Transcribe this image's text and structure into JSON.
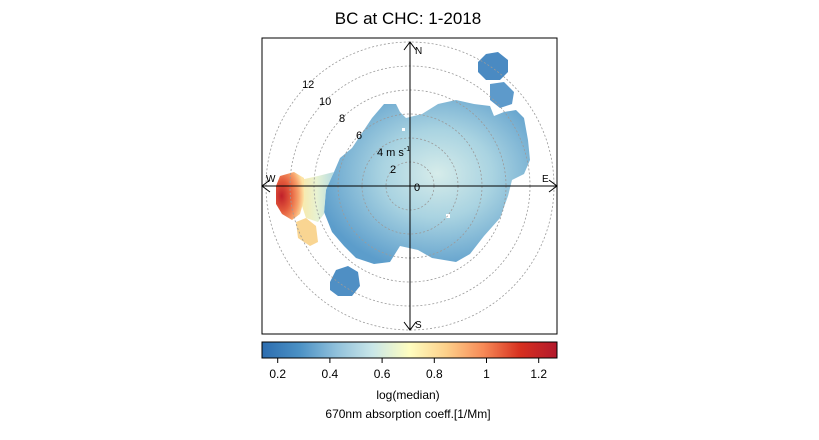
{
  "chart_data": {
    "type": "polar-surface",
    "title": "BC at CHC: 1-2018",
    "compass": {
      "north": "N",
      "south": "S",
      "east": "E",
      "west": "W"
    },
    "radial_axis": {
      "unit_label": "4 m s",
      "unit_exponent": "-1",
      "labels": [
        "2",
        "6",
        "8",
        "10",
        "12"
      ],
      "center_label": "0",
      "rings": [
        2,
        4,
        6,
        8,
        10,
        12
      ],
      "rmax": 12
    },
    "colorbar": {
      "ticks": [
        "0.2",
        "0.4",
        "0.6",
        "0.8",
        "1",
        "1.2"
      ],
      "tick_values": [
        0.2,
        0.4,
        0.6,
        0.8,
        1.0,
        1.2
      ],
      "range": [
        0.14,
        1.27
      ],
      "label": "log(median)",
      "sublabel": "670nm absorption coeff.[1/Mm]",
      "colors": [
        "#2c6db0",
        "#4a90c4",
        "#8fc0db",
        "#c9e6e8",
        "#fffec0",
        "#fdd08a",
        "#f78a57",
        "#d7301f",
        "#b2182b"
      ]
    },
    "regions": [
      {
        "name": "main-core",
        "bearing_deg": 60,
        "speed": 2,
        "value": 0.4
      },
      {
        "name": "north-east-lobe",
        "bearing_deg": 30,
        "speed": 9,
        "value": 0.3
      },
      {
        "name": "north-east-island",
        "bearing_deg": 35,
        "speed": 13,
        "value": 0.2
      },
      {
        "name": "east-lobe",
        "bearing_deg": 75,
        "speed": 9,
        "value": 0.35
      },
      {
        "name": "south-west-island",
        "bearing_deg": 220,
        "speed": 9,
        "value": 0.3
      },
      {
        "name": "west-hotspot",
        "bearing_deg": 275,
        "speed": 11,
        "value": 1.25
      },
      {
        "name": "west-southwest-patch",
        "bearing_deg": 250,
        "speed": 10,
        "value": 0.85
      },
      {
        "name": "west-transition",
        "bearing_deg": 275,
        "speed": 8,
        "value": 0.7
      }
    ]
  }
}
